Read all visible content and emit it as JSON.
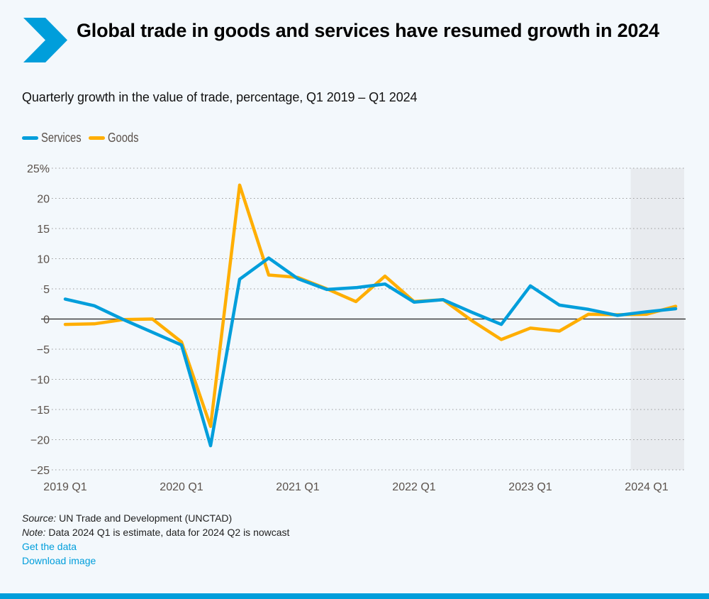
{
  "header": {
    "title": "Global trade in goods and services have resumed growth in 2024",
    "subtitle": "Quarterly growth in the value of trade, percentage, Q1 2019 – Q1 2024",
    "icon": "chevron-right-icon"
  },
  "chart_data": {
    "type": "line",
    "title": "Global trade in goods and services have resumed growth in 2024",
    "subtitle": "Quarterly growth in the value of trade, percentage, Q1 2019 – Q1 2024",
    "xlabel": "",
    "ylabel": "",
    "x": [
      "2019 Q1",
      "2019 Q2",
      "2019 Q3",
      "2019 Q4",
      "2020 Q1",
      "2020 Q2",
      "2020 Q3",
      "2020 Q4",
      "2021 Q1",
      "2021 Q2",
      "2021 Q3",
      "2021 Q4",
      "2022 Q1",
      "2022 Q2",
      "2022 Q3",
      "2022 Q4",
      "2023 Q1",
      "2023 Q2",
      "2023 Q3",
      "2023 Q4",
      "2024 Q1",
      "2024 Q2"
    ],
    "x_tick_labels": [
      "2019 Q1",
      "2020 Q1",
      "2021 Q1",
      "2022 Q1",
      "2023 Q1",
      "2024 Q1"
    ],
    "ylim": [
      -25,
      25
    ],
    "y_ticks": [
      25,
      20,
      15,
      10,
      5,
      0,
      -5,
      -10,
      -15,
      -20,
      -25
    ],
    "y_tick_labels": [
      "25%",
      "20",
      "15",
      "10",
      "5",
      "0",
      "−5",
      "−10",
      "−15",
      "−20",
      "−25"
    ],
    "grid": true,
    "legend_position": "top-left",
    "shaded_region": {
      "from": "2024 Q1",
      "to": "2024 Q2",
      "meaning": "estimate / nowcast"
    },
    "series": [
      {
        "name": "Services",
        "color": "#009edb",
        "values": [
          3.3,
          2.2,
          -0.1,
          -2.2,
          -4.3,
          -21.0,
          6.6,
          10.1,
          6.7,
          4.9,
          5.2,
          5.8,
          2.8,
          3.2,
          1.1,
          -0.9,
          5.5,
          2.3,
          1.6,
          0.6,
          1.2,
          1.7
        ]
      },
      {
        "name": "Goods",
        "color": "#ffae00",
        "values": [
          -0.9,
          -0.8,
          -0.1,
          0.0,
          -3.8,
          -17.8,
          22.2,
          7.3,
          6.9,
          5.0,
          2.9,
          7.1,
          2.9,
          3.2,
          -0.3,
          -3.4,
          -1.5,
          -2.0,
          0.8,
          0.7,
          0.8,
          2.1
        ]
      }
    ]
  },
  "footer": {
    "source_label": "Source:",
    "source_text": " UN Trade and Development (UNCTAD)",
    "note_label": "Note:",
    "note_text": " Data 2024 Q1 is estimate, data for 2024 Q2 is nowcast",
    "get_data_link": "Get the data",
    "download_link": "Download image"
  },
  "colors": {
    "accent": "#009edb",
    "services": "#009edb",
    "goods": "#ffae00",
    "background": "#f3f8fc",
    "shade": "#e8ebef"
  }
}
